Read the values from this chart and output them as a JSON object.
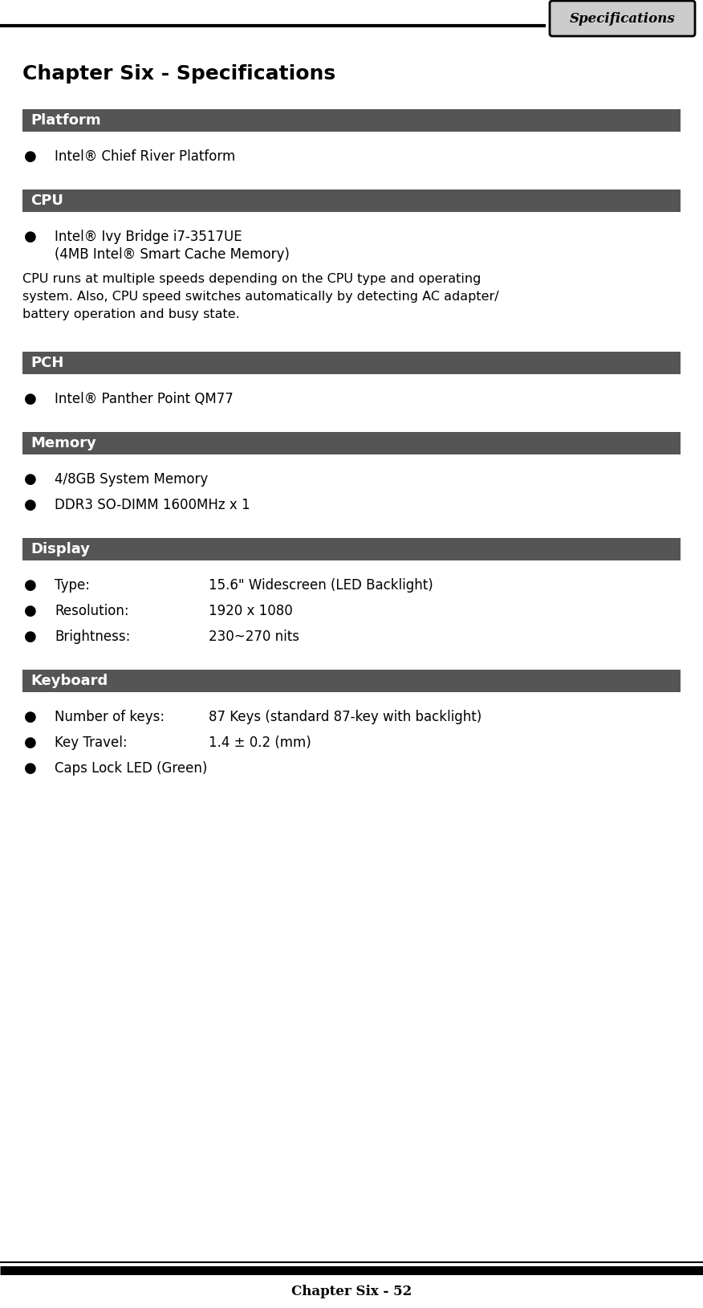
{
  "title": "Chapter Six - Specifications",
  "header_tab_text": "Specifications",
  "footer_text": "Chapter Six - 52",
  "bg_color": "#ffffff",
  "header_bg": "#555555",
  "header_fg": "#ffffff",
  "tab_bg": "#cccccc",
  "tab_fg": "#000000",
  "sections": [
    {
      "heading": "Platform",
      "items": [
        {
          "bullet": true,
          "label": null,
          "text": "Intel® Chief River Platform"
        }
      ],
      "note": null
    },
    {
      "heading": "CPU",
      "items": [
        {
          "bullet": true,
          "label": null,
          "text": "Intel® Ivy Bridge i7-3517UE\n(4MB Intel® Smart Cache Memory)"
        }
      ],
      "note": "CPU runs at multiple speeds depending on the CPU type and operating\nsystem. Also, CPU speed switches automatically by detecting AC adapter/\nbattery operation and busy state."
    },
    {
      "heading": "PCH",
      "items": [
        {
          "bullet": true,
          "label": null,
          "text": "Intel® Panther Point QM77"
        }
      ],
      "note": null
    },
    {
      "heading": "Memory",
      "items": [
        {
          "bullet": true,
          "label": null,
          "text": "4/8GB System Memory"
        },
        {
          "bullet": true,
          "label": null,
          "text": "DDR3 SO-DIMM 1600MHz x 1"
        }
      ],
      "note": null
    },
    {
      "heading": "Display",
      "items": [
        {
          "bullet": true,
          "label": "Type:",
          "text": "15.6\" Widescreen (LED Backlight)"
        },
        {
          "bullet": true,
          "label": "Resolution:",
          "text": "1920 x 1080"
        },
        {
          "bullet": true,
          "label": "Brightness:",
          "text": "230~270 nits"
        }
      ],
      "note": null
    },
    {
      "heading": "Keyboard",
      "items": [
        {
          "bullet": true,
          "label": "Number of keys:",
          "text": "87 Keys (standard 87-key with backlight)"
        },
        {
          "bullet": true,
          "label": "Key Travel:",
          "text": "1.4 ± 0.2 (mm)"
        },
        {
          "bullet": true,
          "label": null,
          "text": "Caps Lock LED (Green)"
        }
      ],
      "note": null
    }
  ]
}
